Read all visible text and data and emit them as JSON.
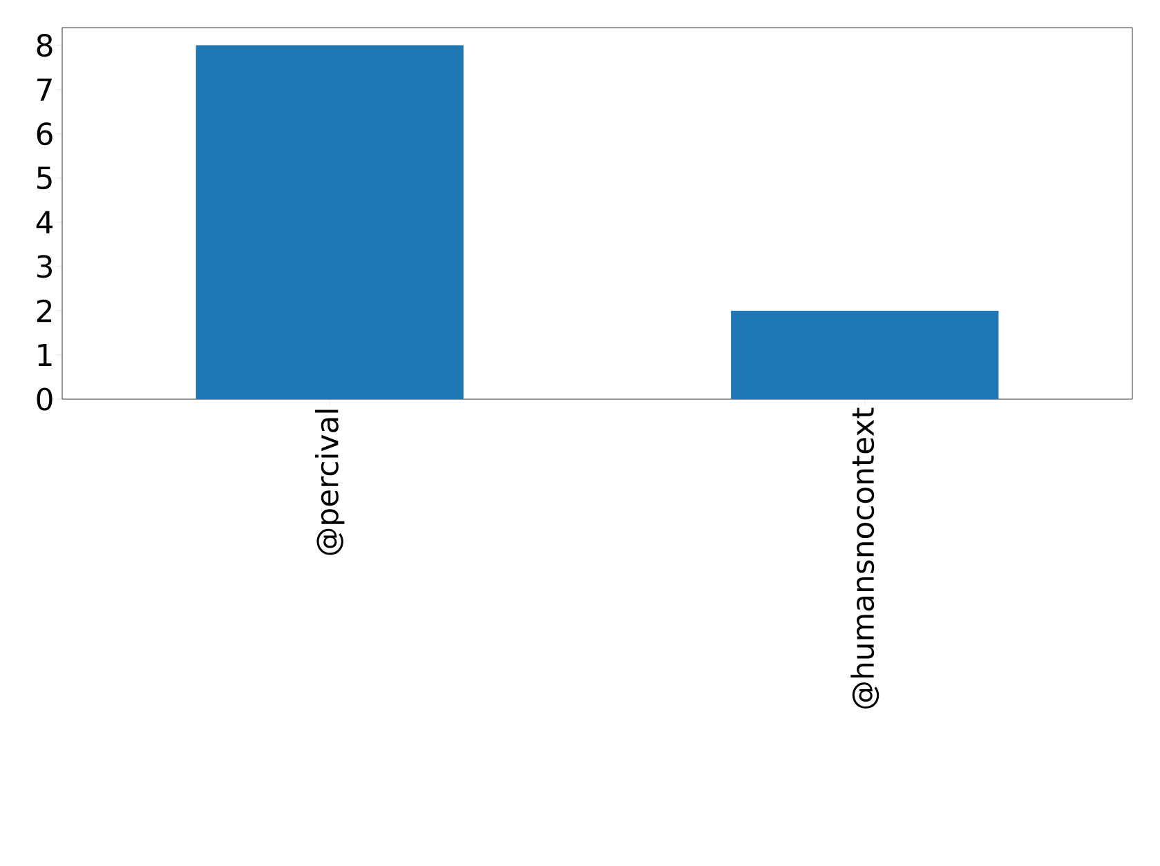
{
  "chart_data": {
    "type": "bar",
    "categories": [
      "@percival",
      "@humansnocontext"
    ],
    "values": [
      8,
      2
    ],
    "color": "#1f77b4",
    "ylim": [
      0,
      8.4
    ],
    "yticks": [
      0,
      1,
      2,
      3,
      4,
      5,
      6,
      7,
      8
    ]
  }
}
